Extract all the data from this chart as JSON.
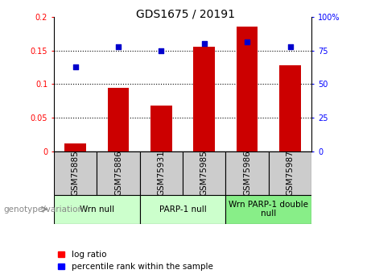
{
  "title": "GDS1675 / 20191",
  "samples": [
    "GSM75885",
    "GSM75886",
    "GSM75931",
    "GSM75985",
    "GSM75986",
    "GSM75987"
  ],
  "log_ratio": [
    0.012,
    0.095,
    0.068,
    0.155,
    0.185,
    0.128
  ],
  "percentile_rank_scaled": [
    0.126,
    0.156,
    0.15,
    0.16,
    0.162,
    0.156
  ],
  "bar_color": "#cc0000",
  "dot_color": "#0000cc",
  "ylim_left": [
    0.0,
    0.2
  ],
  "ylim_right": [
    0,
    100
  ],
  "yticks_left": [
    0,
    0.05,
    0.1,
    0.15,
    0.2
  ],
  "yticks_right": [
    0,
    25,
    50,
    75,
    100
  ],
  "ytick_labels_left": [
    "0",
    "0.05",
    "0.1",
    "0.15",
    "0.2"
  ],
  "ytick_labels_right": [
    "0",
    "25",
    "50",
    "75",
    "100%"
  ],
  "grid_lines": [
    0.05,
    0.1,
    0.15
  ],
  "legend_red": "log ratio",
  "legend_blue": "percentile rank within the sample",
  "sample_box_color": "#cccccc",
  "group_info": [
    {
      "label": "Wrn null",
      "start": 0,
      "end": 2,
      "color": "#ccffcc"
    },
    {
      "label": "PARP-1 null",
      "start": 2,
      "end": 4,
      "color": "#ccffcc"
    },
    {
      "label": "Wrn PARP-1 double\nnull",
      "start": 4,
      "end": 6,
      "color": "#88ee88"
    }
  ],
  "xlabel_genotype": "genotype/variation",
  "bar_width": 0.5,
  "title_fontsize": 10,
  "tick_fontsize": 7,
  "label_fontsize": 7.5
}
